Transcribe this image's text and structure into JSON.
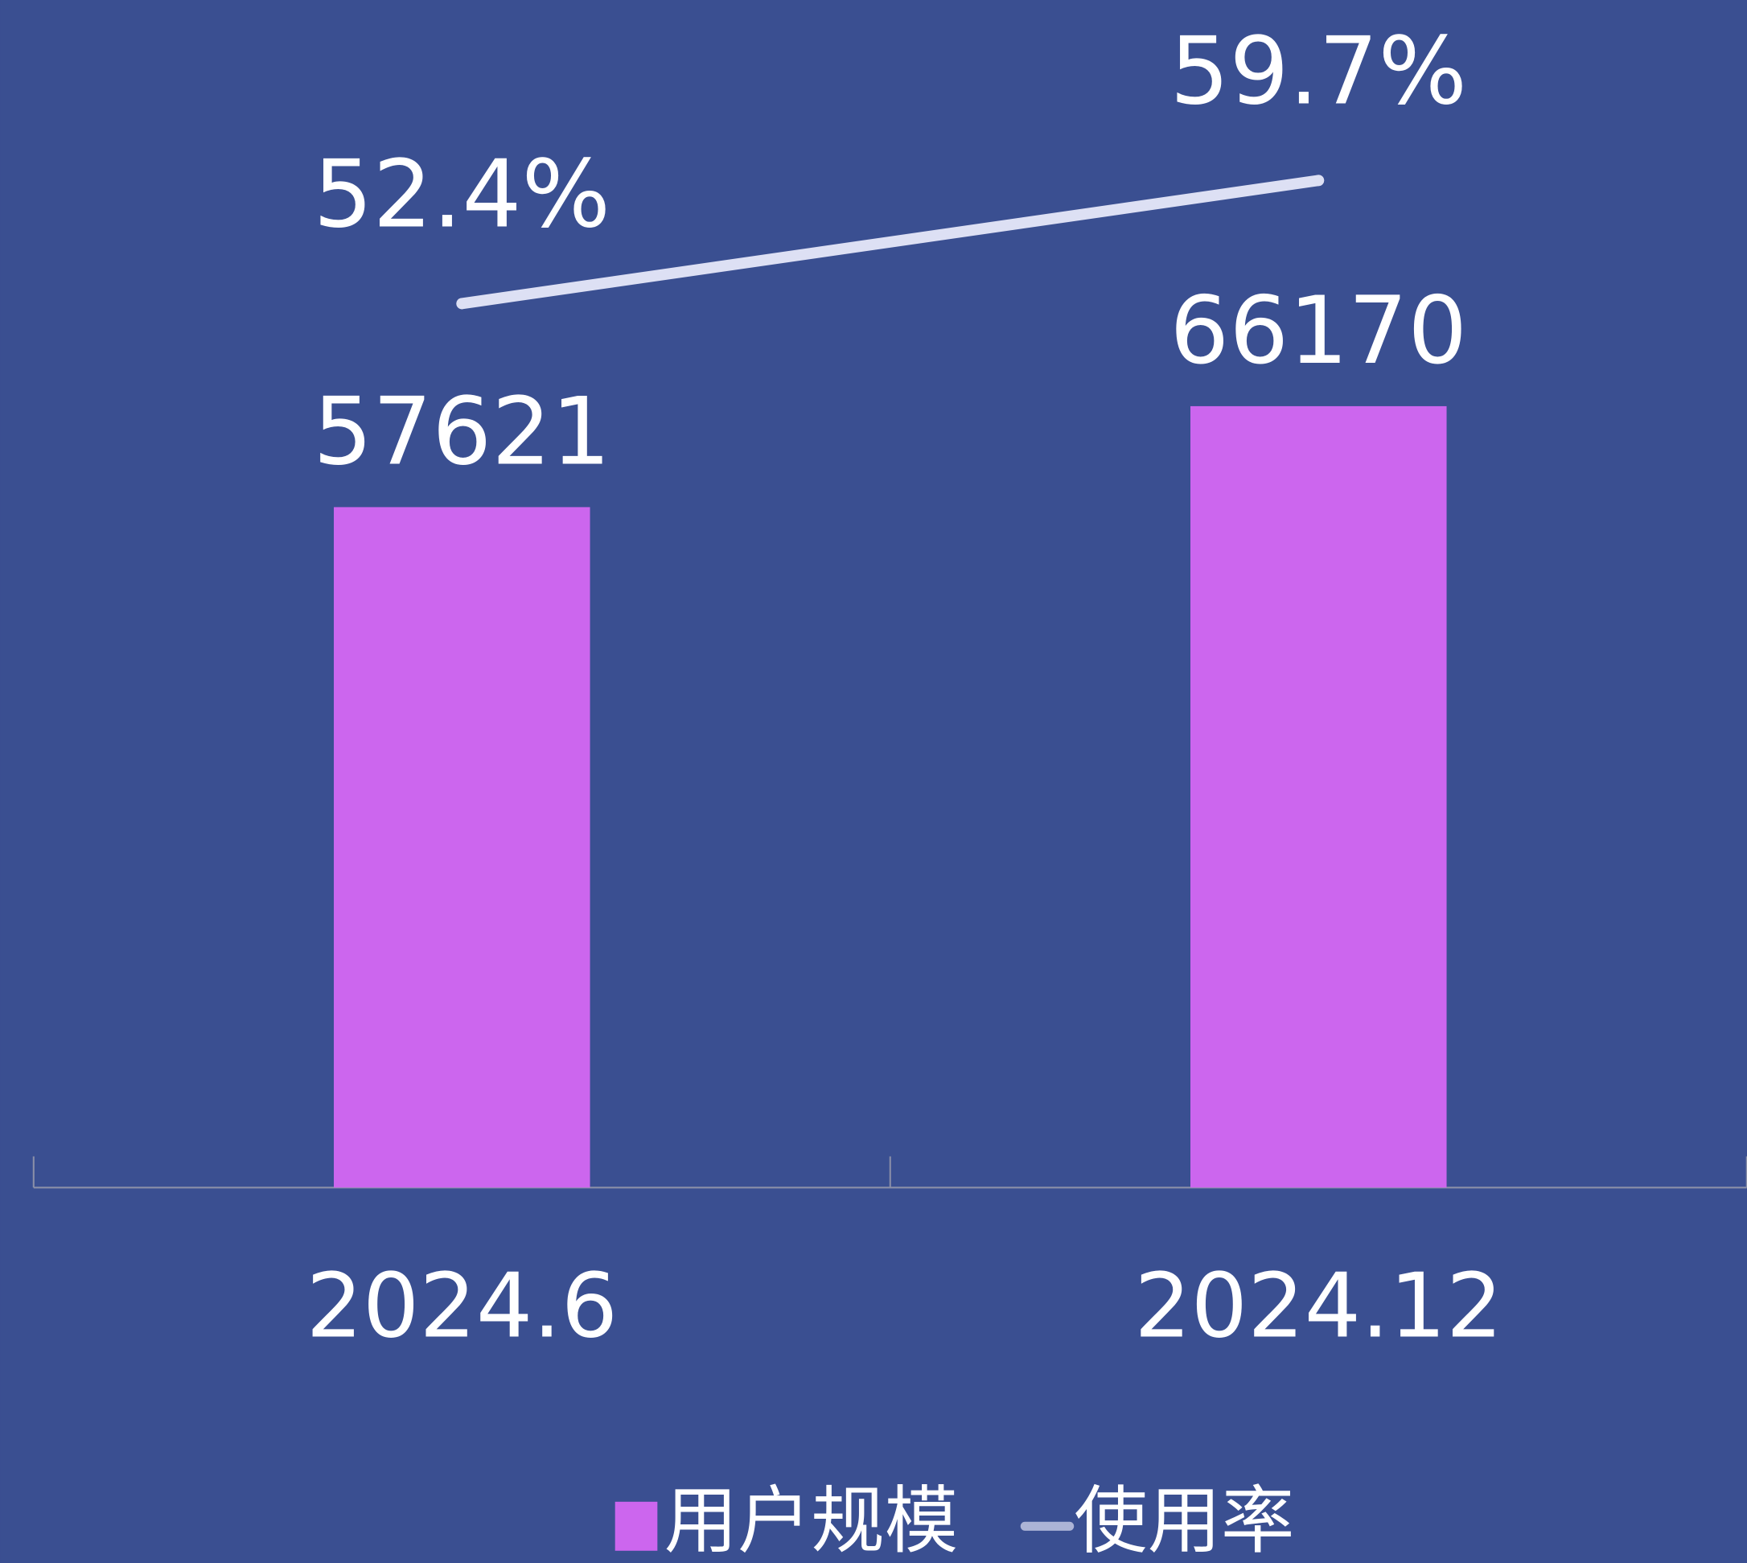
{
  "chart_data": {
    "type": "combo",
    "categories": [
      "2024.6",
      "2024.12"
    ],
    "series": [
      {
        "name": "用户规模",
        "type": "bar",
        "color": "#cc66ee",
        "values": [
          57621,
          66170
        ]
      },
      {
        "name": "使用率",
        "type": "line",
        "axis": "y2",
        "color": "#dde0f4",
        "values": [
          52.4,
          59.7
        ],
        "value_labels": [
          "52.4%",
          "59.7%"
        ]
      }
    ],
    "ylim": [
      0,
      100000
    ],
    "y2lim": [
      0,
      70
    ],
    "legend": "bottom"
  }
}
